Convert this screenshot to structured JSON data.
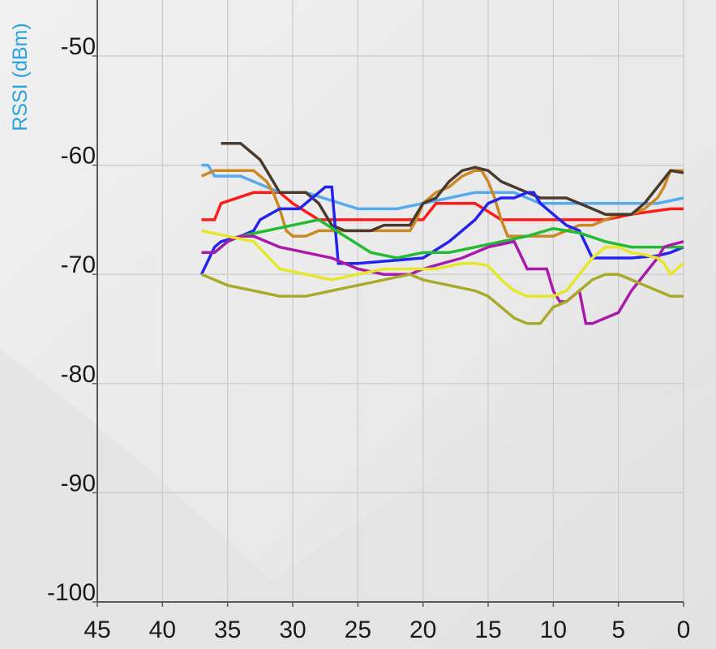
{
  "chart_data": {
    "type": "line",
    "ylabel": "RSSI (dBm)",
    "xlabel": "",
    "xlim": [
      45,
      0
    ],
    "ylim": [
      -100,
      -45
    ],
    "xticks": [
      "45",
      "40",
      "35",
      "30",
      "25",
      "20",
      "15",
      "10",
      "5",
      "0"
    ],
    "yticks": [
      "-50",
      "-60",
      "-70",
      "-80",
      "-90",
      "-100"
    ],
    "grid": true,
    "colors": {
      "ylabel": "#27a3dd",
      "gridline": "#c9c9c9",
      "axis": "#5a5a5a",
      "background": "#ececec"
    },
    "series": [
      {
        "color": "#ff1a1a",
        "x": [
          37,
          36,
          35.5,
          33,
          31,
          30,
          28,
          24,
          20,
          19,
          16,
          14,
          12,
          9,
          6,
          4,
          1,
          0
        ],
        "y": [
          -65,
          -65,
          -63.5,
          -62.5,
          -62.5,
          -63.5,
          -65,
          -65,
          -65,
          -63.5,
          -63.5,
          -65,
          -65,
          -65,
          -65,
          -64.5,
          -64,
          -64
        ]
      },
      {
        "color": "#55aaf0",
        "x": [
          37,
          36.5,
          36,
          34,
          31,
          29,
          25,
          22,
          20,
          18,
          16,
          13,
          11,
          8,
          5,
          2,
          0
        ],
        "y": [
          -60,
          -60,
          -61,
          -61,
          -62.5,
          -62.5,
          -64,
          -64,
          -63.5,
          -63,
          -62.5,
          -62.5,
          -63.5,
          -63.5,
          -63.5,
          -63.5,
          -63
        ]
      },
      {
        "color": "#cc8822",
        "x": [
          37,
          36,
          35,
          33,
          32,
          31.5,
          31,
          30.5,
          30,
          29,
          28,
          27,
          26,
          25,
          23,
          21,
          20.5,
          20,
          19,
          18,
          17,
          16,
          15.5,
          15,
          14.5,
          14,
          13.5,
          12,
          10,
          9,
          8,
          7,
          6,
          5,
          4,
          3,
          2,
          1.5,
          1,
          0
        ],
        "y": [
          -61,
          -60.5,
          -60.5,
          -60.5,
          -61.5,
          -62.5,
          -64,
          -66,
          -66.5,
          -66.5,
          -66,
          -66,
          -66,
          -66,
          -66,
          -66,
          -65,
          -63.5,
          -62.5,
          -62,
          -61,
          -60.5,
          -60.5,
          -61.5,
          -63,
          -65,
          -66.5,
          -66.5,
          -66.5,
          -66,
          -65.5,
          -65.5,
          -65,
          -64.5,
          -64.5,
          -64,
          -63,
          -62,
          -60.5,
          -60.5
        ]
      },
      {
        "color": "#4a3a2e",
        "x": [
          35.5,
          34,
          33,
          32.5,
          32,
          31,
          29,
          28,
          27,
          26,
          24,
          23,
          21,
          20.5,
          20,
          19,
          18,
          17,
          16,
          15,
          14,
          13,
          11,
          9,
          8,
          7,
          6,
          4,
          3,
          2,
          1,
          0
        ],
        "y": [
          -58,
          -58,
          -59,
          -59.5,
          -60.5,
          -62.5,
          -62.5,
          -63.5,
          -65.5,
          -66,
          -66,
          -65.5,
          -65.5,
          -64.5,
          -63.5,
          -63,
          -61.5,
          -60.5,
          -60.2,
          -60.5,
          -61.5,
          -62,
          -63,
          -63,
          -63.5,
          -64,
          -64.5,
          -64.5,
          -63.5,
          -62,
          -60.5,
          -60.7
        ]
      },
      {
        "color": "#2323ee",
        "x": [
          37,
          36,
          35.5,
          34,
          33,
          32.5,
          31,
          29.5,
          28,
          27.5,
          27,
          26.5,
          25,
          20,
          18,
          17,
          16,
          15,
          14,
          13,
          12,
          11.5,
          11,
          10,
          9,
          8,
          7,
          6,
          4,
          2,
          1,
          0
        ],
        "y": [
          -70,
          -67.5,
          -67,
          -66.5,
          -66,
          -65,
          -64,
          -64,
          -62.5,
          -62,
          -62,
          -69,
          -69,
          -68.5,
          -67,
          -66,
          -65,
          -63.5,
          -63,
          -63,
          -62.5,
          -62.5,
          -63.5,
          -64.5,
          -65.5,
          -66,
          -68.5,
          -68.5,
          -68.5,
          -68.3,
          -68,
          -67.5
        ]
      },
      {
        "color": "#22bb33",
        "x": [
          37,
          36,
          35,
          34,
          32,
          30,
          28,
          26,
          24,
          22,
          20,
          18,
          16,
          14,
          12,
          10,
          8,
          6,
          4,
          2,
          1,
          0
        ],
        "y": [
          -68,
          -68,
          -67,
          -66.5,
          -66,
          -65.5,
          -65,
          -66.5,
          -68,
          -68.5,
          -68,
          -68,
          -67.5,
          -67,
          -66.5,
          -65.8,
          -66.2,
          -67,
          -67.5,
          -67.5,
          -67.5,
          -67.5
        ]
      },
      {
        "color": "#aa1aaa",
        "x": [
          37,
          36,
          35,
          34,
          33,
          31,
          29,
          27,
          25,
          23,
          21,
          20,
          18.5,
          17,
          15,
          13,
          12,
          10.5,
          10,
          9.5,
          9,
          8,
          7.5,
          7,
          6,
          5,
          4,
          3,
          2,
          1.5,
          1,
          0
        ],
        "y": [
          -68,
          -68,
          -67,
          -66.5,
          -66.5,
          -67.5,
          -68,
          -68.5,
          -69.5,
          -70,
          -70,
          -69.5,
          -69,
          -68.5,
          -67.5,
          -67,
          -69.5,
          -69.5,
          -71.5,
          -72.5,
          -72.5,
          -71.5,
          -74.5,
          -74.5,
          -74,
          -73.5,
          -71.5,
          -70,
          -68.5,
          -67.5,
          -67.3,
          -67
        ]
      },
      {
        "color": "#e6e62a",
        "x": [
          37,
          35,
          33,
          31,
          29,
          27,
          25,
          23,
          21,
          19,
          17,
          16,
          15,
          14,
          13,
          12,
          10,
          9,
          8,
          7,
          6,
          5,
          4,
          3,
          2,
          1.5,
          1,
          0
        ],
        "y": [
          -66,
          -66.5,
          -67,
          -69.5,
          -70,
          -70.5,
          -70,
          -69.5,
          -69.5,
          -69.5,
          -69,
          -69,
          -69.2,
          -70.5,
          -71.5,
          -72,
          -72,
          -71.5,
          -70,
          -68.5,
          -67.5,
          -67.5,
          -68,
          -68.2,
          -68.5,
          -69,
          -70,
          -69
        ]
      },
      {
        "color": "#aaaa2a",
        "x": [
          37,
          36,
          35,
          33,
          31,
          29,
          27,
          25,
          23,
          21,
          20,
          18,
          16,
          15,
          14,
          13,
          12,
          11,
          10,
          9,
          8,
          7,
          6,
          5,
          4,
          3,
          2,
          1,
          0
        ],
        "y": [
          -70,
          -70.5,
          -71,
          -71.5,
          -72,
          -72,
          -71.5,
          -71,
          -70.5,
          -70,
          -70.5,
          -71,
          -71.5,
          -72,
          -73,
          -74,
          -74.5,
          -74.5,
          -73,
          -72.5,
          -71.5,
          -70.5,
          -70,
          -70,
          -70.5,
          -71,
          -71.5,
          -72,
          -72
        ]
      }
    ]
  }
}
